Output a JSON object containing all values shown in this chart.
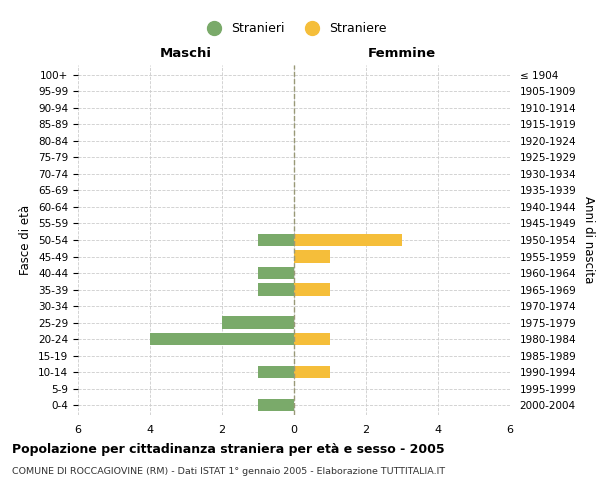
{
  "age_groups": [
    "100+",
    "95-99",
    "90-94",
    "85-89",
    "80-84",
    "75-79",
    "70-74",
    "65-69",
    "60-64",
    "55-59",
    "50-54",
    "45-49",
    "40-44",
    "35-39",
    "30-34",
    "25-29",
    "20-24",
    "15-19",
    "10-14",
    "5-9",
    "0-4"
  ],
  "birth_years": [
    "≤ 1904",
    "1905-1909",
    "1910-1914",
    "1915-1919",
    "1920-1924",
    "1925-1929",
    "1930-1934",
    "1935-1939",
    "1940-1944",
    "1945-1949",
    "1950-1954",
    "1955-1959",
    "1960-1964",
    "1965-1969",
    "1970-1974",
    "1975-1979",
    "1980-1984",
    "1985-1989",
    "1990-1994",
    "1995-1999",
    "2000-2004"
  ],
  "maschi_stranieri": [
    0,
    0,
    0,
    0,
    0,
    0,
    0,
    0,
    0,
    0,
    1,
    0,
    1,
    1,
    0,
    2,
    4,
    0,
    1,
    0,
    1
  ],
  "femmine_straniere": [
    0,
    0,
    0,
    0,
    0,
    0,
    0,
    0,
    0,
    0,
    3,
    1,
    0,
    1,
    0,
    0,
    1,
    0,
    1,
    0,
    0
  ],
  "stranieri_color": "#7aaa6a",
  "straniere_color": "#f5be3a",
  "background_color": "#ffffff",
  "grid_color": "#cccccc",
  "xlim": 6,
  "xlabel_left": "Maschi",
  "xlabel_right": "Femmine",
  "ylabel_left": "Fasce di età",
  "ylabel_right": "Anni di nascita",
  "title": "Popolazione per cittadinanza straniera per età e sesso - 2005",
  "subtitle": "COMUNE DI ROCCAGIOVINE (RM) - Dati ISTAT 1° gennaio 2005 - Elaborazione TUTTITALIA.IT",
  "legend_stranieri": "Stranieri",
  "legend_straniere": "Straniere",
  "bar_height": 0.75
}
